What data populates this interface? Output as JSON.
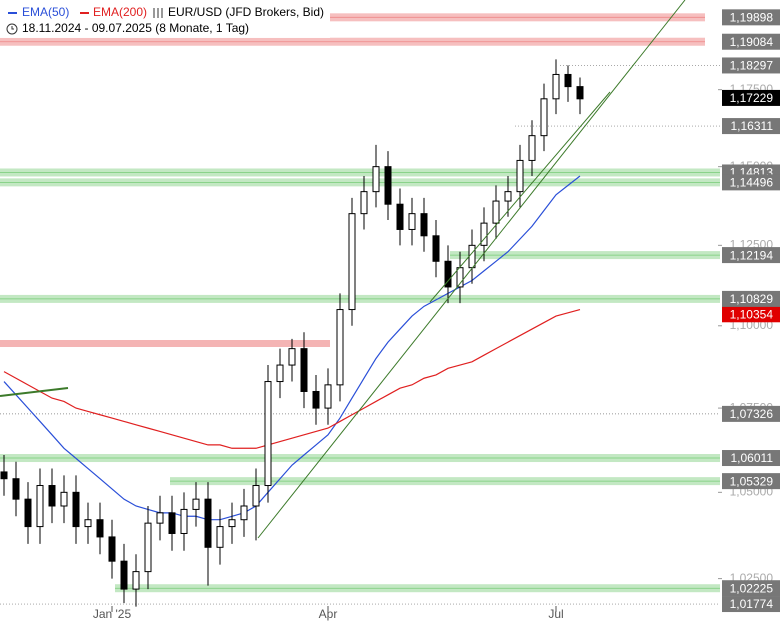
{
  "chart_data": {
    "type": "candlestick",
    "title": "EUR/USD (JFD Brokers, Bid)",
    "subtitle": "18.11.2024 - 09.07.2025  (8 Monate, 1 Tag)",
    "log_scale": true,
    "categories": [
      null,
      null,
      null,
      null,
      null,
      null,
      null,
      null,
      null,
      "Jan '25",
      null,
      null,
      null,
      null,
      null,
      null,
      null,
      null,
      null,
      null,
      null,
      null,
      null,
      null,
      null,
      null,
      null,
      "Apr",
      null,
      null,
      null,
      null,
      null,
      null,
      null,
      null,
      null,
      null,
      null,
      null,
      null,
      null,
      null,
      null,
      null,
      null,
      "Jul",
      null,
      null
    ],
    "ohlc": {
      "open": [
        1.056,
        1.054,
        1.048,
        1.04,
        1.052,
        1.046,
        1.05,
        1.04,
        1.042,
        1.037,
        1.03,
        1.022,
        1.027,
        1.041,
        1.044,
        1.038,
        1.045,
        1.048,
        1.034,
        1.04,
        1.042,
        1.046,
        1.052,
        1.083,
        1.088,
        1.093,
        1.08,
        1.075,
        1.082,
        1.105,
        1.135,
        1.142,
        1.15,
        1.138,
        1.13,
        1.135,
        1.128,
        1.12,
        1.112,
        1.118,
        1.125,
        1.132,
        1.139,
        1.142,
        1.152,
        1.16,
        1.172,
        1.18,
        1.176
      ],
      "high": [
        1.061,
        1.059,
        1.053,
        1.057,
        1.057,
        1.055,
        1.055,
        1.047,
        1.047,
        1.042,
        1.035,
        1.032,
        1.046,
        1.049,
        1.049,
        1.05,
        1.053,
        1.053,
        1.045,
        1.047,
        1.051,
        1.057,
        1.088,
        1.093,
        1.096,
        1.098,
        1.085,
        1.087,
        1.11,
        1.14,
        1.147,
        1.157,
        1.155,
        1.143,
        1.14,
        1.14,
        1.133,
        1.125,
        1.123,
        1.13,
        1.137,
        1.144,
        1.147,
        1.157,
        1.165,
        1.177,
        1.185,
        1.183,
        1.179
      ],
      "low": [
        1.049,
        1.043,
        1.035,
        1.035,
        1.041,
        1.041,
        1.035,
        1.035,
        1.032,
        1.025,
        1.018,
        1.017,
        1.022,
        1.036,
        1.033,
        1.033,
        1.04,
        1.023,
        1.029,
        1.035,
        1.037,
        1.036,
        1.047,
        1.078,
        1.083,
        1.075,
        1.07,
        1.07,
        1.077,
        1.1,
        1.13,
        1.137,
        1.133,
        1.125,
        1.125,
        1.123,
        1.115,
        1.107,
        1.107,
        1.113,
        1.12,
        1.127,
        1.134,
        1.137,
        1.147,
        1.155,
        1.167,
        1.171,
        1.167
      ],
      "close": [
        1.054,
        1.048,
        1.04,
        1.052,
        1.046,
        1.05,
        1.04,
        1.042,
        1.037,
        1.03,
        1.022,
        1.027,
        1.041,
        1.044,
        1.038,
        1.045,
        1.048,
        1.034,
        1.04,
        1.042,
        1.046,
        1.052,
        1.083,
        1.088,
        1.093,
        1.08,
        1.075,
        1.082,
        1.105,
        1.135,
        1.142,
        1.15,
        1.138,
        1.13,
        1.135,
        1.128,
        1.12,
        1.112,
        1.118,
        1.125,
        1.132,
        1.139,
        1.142,
        1.152,
        1.16,
        1.172,
        1.18,
        1.176,
        1.172
      ]
    },
    "series": [
      {
        "name": "EMA(50)",
        "color": "#2a4fd8",
        "values": [
          1.083,
          1.079,
          1.075,
          1.071,
          1.067,
          1.063,
          1.06,
          1.057,
          1.054,
          1.051,
          1.048,
          1.046,
          1.045,
          1.044,
          1.044,
          1.043,
          1.043,
          1.042,
          1.042,
          1.043,
          1.044,
          1.046,
          1.05,
          1.054,
          1.058,
          1.061,
          1.064,
          1.067,
          1.072,
          1.078,
          1.084,
          1.09,
          1.095,
          1.099,
          1.103,
          1.106,
          1.108,
          1.11,
          1.112,
          1.114,
          1.117,
          1.12,
          1.123,
          1.127,
          1.131,
          1.136,
          1.141,
          1.144,
          1.147
        ]
      },
      {
        "name": "EMA(200)",
        "color": "#e02020",
        "values": [
          1.086,
          1.084,
          1.082,
          1.08,
          1.078,
          1.077,
          1.075,
          1.074,
          1.073,
          1.072,
          1.071,
          1.07,
          1.069,
          1.068,
          1.067,
          1.066,
          1.065,
          1.064,
          1.064,
          1.063,
          1.063,
          1.063,
          1.064,
          1.065,
          1.066,
          1.067,
          1.068,
          1.069,
          1.071,
          1.073,
          1.075,
          1.077,
          1.079,
          1.081,
          1.082,
          1.084,
          1.085,
          1.087,
          1.088,
          1.089,
          1.091,
          1.093,
          1.095,
          1.097,
          1.099,
          1.101,
          1.103,
          1.104,
          1.105
        ]
      }
    ],
    "ylim": [
      1.0118,
      1.2048
    ],
    "yticks": [
      {
        "value": 1.025,
        "label": "1,02500"
      },
      {
        "value": 1.05,
        "label": "1,05000"
      },
      {
        "value": 1.075,
        "label": "1,07500"
      },
      {
        "value": 1.1,
        "label": "1,10000"
      },
      {
        "value": 1.125,
        "label": "1,12500"
      },
      {
        "value": 1.15,
        "label": "1,15000"
      },
      {
        "value": 1.175,
        "label": "1,17500"
      }
    ],
    "levels": [
      {
        "value": 1.19898,
        "label": "1,19898",
        "style": "zone",
        "color": "#f4b4b4"
      },
      {
        "value": 1.19084,
        "label": "1,19084",
        "style": "zone",
        "color": "#f4b4b4"
      },
      {
        "value": 1.18297,
        "label": "1,18297",
        "style": "dotted",
        "color": "#777777"
      },
      {
        "value": 1.16311,
        "label": "1,16311",
        "style": "dotted",
        "color": "#777777"
      },
      {
        "value": 1.14813,
        "label": "1,14813",
        "style": "zone",
        "color": "#b8e4b8"
      },
      {
        "value": 1.14496,
        "label": "1,14496",
        "style": "zone",
        "color": "#b8e4b8"
      },
      {
        "value": 1.12194,
        "label": "1,12194",
        "style": "zone",
        "color": "#b8e4b8"
      },
      {
        "value": 1.10354,
        "label": "1,10354",
        "style": "box",
        "color": "#e00000"
      },
      {
        "value": 1.10829,
        "label": "1,10829",
        "style": "zone",
        "color": "#b8e4b8"
      },
      {
        "value": 1.07326,
        "label": "1,07326",
        "style": "dotted",
        "color": "#777777"
      },
      {
        "value": 1.06011,
        "label": "1,06011",
        "style": "zone",
        "color": "#b8e4b8"
      },
      {
        "value": 1.05329,
        "label": "1,05329",
        "style": "zone",
        "color": "#b8e4b8"
      },
      {
        "value": 1.02225,
        "label": "1,02225",
        "style": "zone",
        "color": "#b8e4b8"
      },
      {
        "value": 1.01774,
        "label": "1,01774",
        "style": "dotted",
        "color": "#777777"
      },
      {
        "value": 1.17229,
        "label": "1,17229",
        "style": "box",
        "color": "#000000"
      }
    ]
  }
}
